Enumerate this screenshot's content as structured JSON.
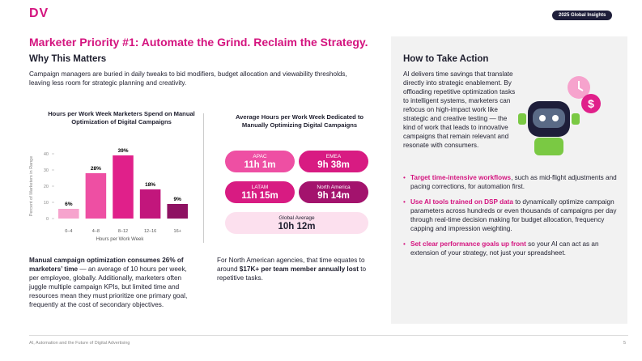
{
  "header": {
    "logo": "DV",
    "badge": "2025 Global Insights"
  },
  "title": "Marketer Priority #1: Automate the Grind. Reclaim the Strategy.",
  "why": {
    "heading": "Why This Matters",
    "text": "Campaign managers are buried in daily tweaks to bid modifiers, budget allocation and viewability thresholds, leaving less room for strategic planning and creativity."
  },
  "chart_data": {
    "type": "bar",
    "title": "Hours per Work Week Marketers Spend on Manual Optimization of Digital Campaigns",
    "categories": [
      "0–4",
      "4–8",
      "8–12",
      "12–16",
      "16+"
    ],
    "values": [
      6,
      28,
      39,
      18,
      9
    ],
    "value_labels": [
      "6%",
      "28%",
      "39%",
      "18%",
      "9%"
    ],
    "colors": [
      "#f6a3cd",
      "#ee4fa3",
      "#e0208a",
      "#c2167c",
      "#8e1262"
    ],
    "ylim": [
      0,
      45
    ],
    "yticks": [
      0,
      10,
      20,
      30,
      40
    ],
    "x_label": "Hours per Work Week",
    "y_label": "Percent of Marketers in Range"
  },
  "left_note": {
    "bold": "Manual campaign optimization consumes 26% of marketers’ time",
    "text": " — an average of 10 hours per week, per employee, globally. Additionally, marketers often juggle multiple campaign KPIs, but limited time and resources mean they must prioritize one primary goal, frequently at the cost of secondary objectives."
  },
  "regional": {
    "title": "Average Hours per Work Week Dedicated to Manually Optimizing Digital Campaigns",
    "regions": [
      {
        "name": "APAC",
        "value": "11h 1m"
      },
      {
        "name": "EMEA",
        "value": "9h 38m"
      },
      {
        "name": "LATAM",
        "value": "11h 15m"
      },
      {
        "name": "North America",
        "value": "9h 14m"
      }
    ],
    "global": {
      "name": "Global Average",
      "value": "10h 12m"
    }
  },
  "na_note": {
    "before": "For North American agencies, that time equates to around ",
    "bold": "$17K+ per team member annually lost",
    "after": " to repetitive tasks."
  },
  "action": {
    "heading": "How to Take Action",
    "intro": "AI delivers time savings that translate directly into strategic enablement. By offloading repetitive optimization tasks to intelligent systems, marketers can refocus on high-impact work like strategic and creative testing — the kind of work that leads to innovative campaigns that remain relevant and resonate with consumers.",
    "bullets": [
      {
        "bold": "Target time-intensive workflows",
        "text": ", such as mid-flight adjustments and pacing corrections, for automation first."
      },
      {
        "bold": "Use AI tools trained on DSP data",
        "text": " to dynamically optimize campaign parameters across hundreds or even thousands of campaigns per day through real-time decision making for budget allocation, frequency capping and impression weighting."
      },
      {
        "bold": "Set clear performance goals up front",
        "text": " so your AI can act as an extension of your strategy, not just your spreadsheet."
      }
    ]
  },
  "footer": {
    "text": "AI, Automation and the Future of Digital Advertising",
    "page": "5"
  }
}
